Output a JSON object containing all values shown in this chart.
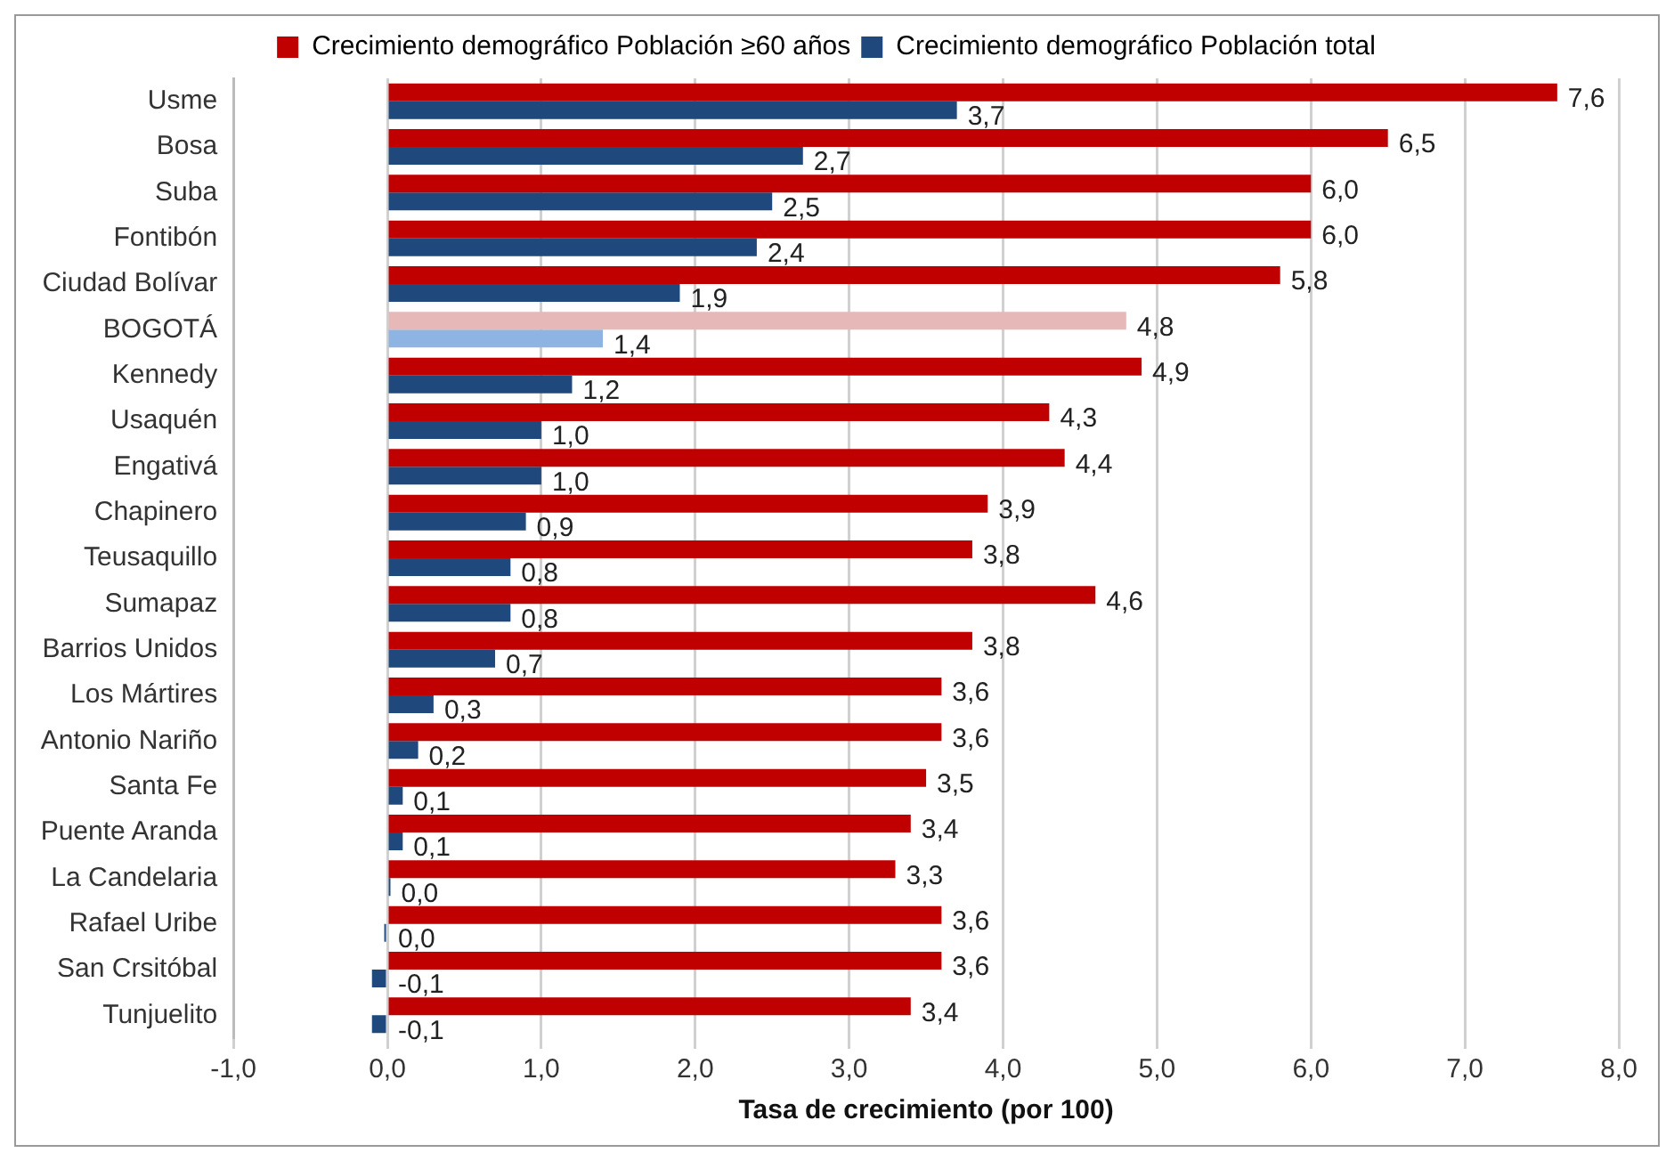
{
  "chart_data": {
    "type": "bar",
    "orientation": "horizontal",
    "xlabel": "Tasa de crecimiento (por 100)",
    "categories": [
      "Usme",
      "Bosa",
      "Suba",
      "Fontibón",
      "Ciudad Bolívar",
      "BOGOTÁ",
      "Kennedy",
      "Usaquén",
      "Engativá",
      "Chapinero",
      "Teusaquillo",
      "Sumapaz",
      "Barrios Unidos",
      "Los Mártires",
      "Antonio Nariño",
      "Santa Fe",
      "Puente Aranda",
      "La Candelaria",
      "Rafael Uribe",
      "San Crsitóbal",
      "Tunjuelito"
    ],
    "series": [
      {
        "name": "Crecimiento demográfico Población ≥60 años",
        "color": "#c00000",
        "colors": [
          "#c00000",
          "#c00000",
          "#c00000",
          "#c00000",
          "#c00000",
          "#e6b9b8",
          "#c00000",
          "#c00000",
          "#c00000",
          "#c00000",
          "#c00000",
          "#c00000",
          "#c00000",
          "#c00000",
          "#c00000",
          "#c00000",
          "#c00000",
          "#c00000",
          "#c00000",
          "#c00000",
          "#c00000"
        ],
        "values": [
          7.6,
          6.5,
          6.0,
          6.0,
          5.8,
          4.8,
          4.9,
          4.3,
          4.4,
          3.9,
          3.8,
          4.6,
          3.8,
          3.6,
          3.6,
          3.5,
          3.4,
          3.3,
          3.6,
          3.6,
          3.4
        ],
        "value_labels": [
          "7,6",
          "6,5",
          "6,0",
          "6,0",
          "5,8",
          "4,8",
          "4,9",
          "4,3",
          "4,4",
          "3,9",
          "3,8",
          "4,6",
          "3,8",
          "3,6",
          "3,6",
          "3,5",
          "3,4",
          "3,3",
          "3,6",
          "3,6",
          "3,4"
        ]
      },
      {
        "name": "Crecimiento demográfico Población total",
        "color": "#1f497d",
        "colors": [
          "#1f497d",
          "#1f497d",
          "#1f497d",
          "#1f497d",
          "#1f497d",
          "#8db4e2",
          "#1f497d",
          "#1f497d",
          "#1f497d",
          "#1f497d",
          "#1f497d",
          "#1f497d",
          "#1f497d",
          "#1f497d",
          "#1f497d",
          "#1f497d",
          "#1f497d",
          "#1f497d",
          "#1f497d",
          "#1f497d",
          "#1f497d"
        ],
        "values": [
          3.7,
          2.7,
          2.5,
          2.4,
          1.9,
          1.4,
          1.2,
          1.0,
          1.0,
          0.9,
          0.8,
          0.8,
          0.7,
          0.3,
          0.2,
          0.1,
          0.1,
          0.02,
          -0.02,
          -0.1,
          -0.1
        ],
        "value_labels": [
          "3,7",
          "2,7",
          "2,5",
          "2,4",
          "1,9",
          "1,4",
          "1,2",
          "1,0",
          "1,0",
          "0,9",
          "0,8",
          "0,8",
          "0,7",
          "0,3",
          "0,2",
          "0,1",
          "0,1",
          "0,0",
          "0,0",
          "-0,1",
          "-0,1"
        ]
      }
    ],
    "xlim": [
      -1,
      8
    ],
    "xticks": [
      {
        "value": -1,
        "label": "-1,0"
      },
      {
        "value": 0,
        "label": "0,0"
      },
      {
        "value": 1,
        "label": "1,0"
      },
      {
        "value": 2,
        "label": "2,0"
      },
      {
        "value": 3,
        "label": "3,0"
      },
      {
        "value": 4,
        "label": "4,0"
      },
      {
        "value": 5,
        "label": "5,0"
      },
      {
        "value": 6,
        "label": "6,0"
      },
      {
        "value": 7,
        "label": "7,0"
      },
      {
        "value": 8,
        "label": "8,0"
      }
    ],
    "grid": "x",
    "legend": "top"
  }
}
